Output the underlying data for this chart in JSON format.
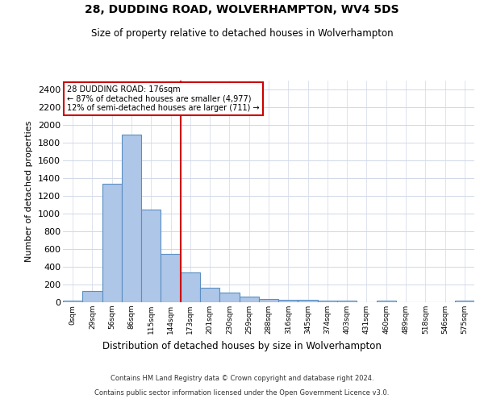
{
  "title_line1": "28, DUDDING ROAD, WOLVERHAMPTON, WV4 5DS",
  "title_line2": "Size of property relative to detached houses in Wolverhampton",
  "xlabel": "Distribution of detached houses by size in Wolverhampton",
  "ylabel": "Number of detached properties",
  "footer_line1": "Contains HM Land Registry data © Crown copyright and database right 2024.",
  "footer_line2": "Contains public sector information licensed under the Open Government Licence v3.0.",
  "annotation_line1": "28 DUDDING ROAD: 176sqm",
  "annotation_line2": "← 87% of detached houses are smaller (4,977)",
  "annotation_line3": "12% of semi-detached houses are larger (711) →",
  "bar_labels": [
    "0sqm",
    "29sqm",
    "56sqm",
    "86sqm",
    "115sqm",
    "144sqm",
    "173sqm",
    "201sqm",
    "230sqm",
    "259sqm",
    "288sqm",
    "316sqm",
    "345sqm",
    "374sqm",
    "403sqm",
    "431sqm",
    "460sqm",
    "489sqm",
    "518sqm",
    "546sqm",
    "575sqm"
  ],
  "bar_values": [
    15,
    125,
    1340,
    1890,
    1045,
    545,
    335,
    165,
    110,
    65,
    40,
    30,
    28,
    22,
    15,
    0,
    20,
    0,
    0,
    0,
    15
  ],
  "bar_color": "#aec6e8",
  "bar_edge_color": "#5a8fc2",
  "vline_x_index": 6,
  "vline_color": "#cc0000",
  "ylim": [
    0,
    2500
  ],
  "yticks": [
    0,
    200,
    400,
    600,
    800,
    1000,
    1200,
    1400,
    1600,
    1800,
    2000,
    2200,
    2400
  ],
  "annotation_box_edge_color": "#cc0000",
  "background_color": "#ffffff",
  "grid_color": "#d0d8e8"
}
